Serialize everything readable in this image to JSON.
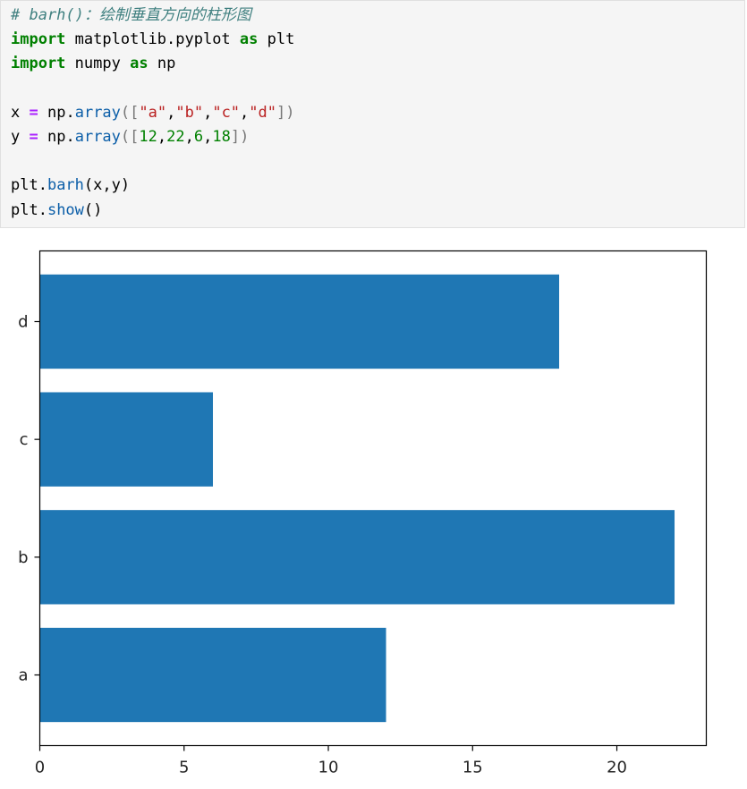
{
  "code_cell": {
    "comment": "# barh()：绘制垂直方向的柱形图",
    "line_import1": {
      "kw_import": "import",
      "module": "matplotlib.pyplot",
      "kw_as": "as",
      "alias": "plt"
    },
    "line_import2": {
      "kw_import": "import",
      "module": "numpy",
      "kw_as": "as",
      "alias": "np"
    },
    "line_x": {
      "var": "x",
      "eq": "=",
      "obj": "np.",
      "func": "array",
      "open": "([",
      "items": [
        "\"a\"",
        "\"b\"",
        "\"c\"",
        "\"d\""
      ],
      "close": "])"
    },
    "line_y": {
      "var": "y",
      "eq": "=",
      "obj": "np.",
      "func": "array",
      "open": "([",
      "items": [
        "12",
        "22",
        "6",
        "18"
      ],
      "close": "])"
    },
    "line_barh": {
      "obj": "plt.",
      "func": "barh",
      "args": "(x,y)"
    },
    "line_show": {
      "obj": "plt.",
      "func": "show",
      "args": "()"
    }
  },
  "chart_data": {
    "type": "bar",
    "orientation": "horizontal",
    "categories": [
      "a",
      "b",
      "c",
      "d"
    ],
    "values": [
      12,
      22,
      6,
      18
    ],
    "xlim": [
      0,
      23.1
    ],
    "xticks": [
      0,
      5,
      10,
      15,
      20
    ],
    "xtick_labels": [
      "0",
      "5",
      "10",
      "15",
      "20"
    ],
    "bar_color": "#1f77b4",
    "grid": false,
    "legend": "none"
  }
}
